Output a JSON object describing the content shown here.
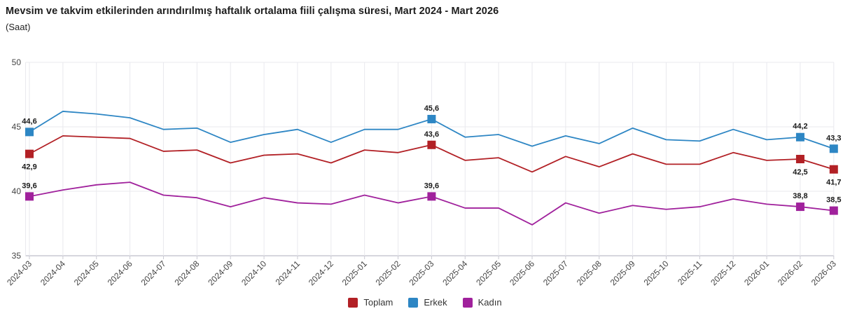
{
  "header": {
    "title": "Mevsim ve takvim etkilerinden arındırılmış haftalık ortalama fiili çalışma süresi, Mart 2024 - Mart 2026",
    "subtitle": "(Saat)"
  },
  "chart_data": {
    "type": "line",
    "title": "Mevsim ve takvim etkilerinden arındırılmış haftalık ortalama fiili çalışma süresi, Mart 2024 - Mart 2026",
    "subtitle": "(Saat)",
    "x": [
      "2024-03",
      "2024-04",
      "2024-05",
      "2024-06",
      "2024-07",
      "2024-08",
      "2024-09",
      "2024-10",
      "2024-11",
      "2024-12",
      "2025-01",
      "2025-02",
      "2025-03",
      "2025-04",
      "2025-05",
      "2025-06",
      "2025-07",
      "2025-08",
      "2025-09",
      "2025-10",
      "2025-11",
      "2025-12",
      "2026-01",
      "2026-02",
      "2026-03"
    ],
    "series": [
      {
        "name": "Toplam",
        "color": "#b22025",
        "values": [
          42.9,
          44.3,
          44.2,
          44.1,
          43.1,
          43.2,
          42.2,
          42.8,
          42.9,
          42.2,
          43.2,
          43.0,
          43.6,
          42.4,
          42.6,
          41.5,
          42.7,
          41.9,
          42.9,
          42.1,
          42.1,
          43.0,
          42.4,
          42.5,
          41.7
        ]
      },
      {
        "name": "Erkek",
        "color": "#2d86c4",
        "values": [
          44.6,
          46.2,
          46.0,
          45.7,
          44.8,
          44.9,
          43.8,
          44.4,
          44.8,
          43.8,
          44.8,
          44.8,
          45.6,
          44.2,
          44.4,
          43.5,
          44.3,
          43.7,
          44.9,
          44.0,
          43.9,
          44.8,
          44.0,
          44.2,
          43.3
        ]
      },
      {
        "name": "Kadın",
        "color": "#a0219c",
        "values": [
          39.6,
          40.1,
          40.5,
          40.7,
          39.7,
          39.5,
          38.8,
          39.5,
          39.1,
          39.0,
          39.7,
          39.1,
          39.6,
          38.7,
          38.7,
          37.4,
          39.1,
          38.3,
          38.9,
          38.6,
          38.8,
          39.4,
          39.0,
          38.8,
          38.5
        ]
      }
    ],
    "data_labels": {
      "indices": [
        0,
        12,
        23,
        24
      ],
      "positions": {
        "Toplam": [
          "below",
          "above",
          "below",
          "below"
        ],
        "Erkek": [
          "above",
          "above",
          "above",
          "above"
        ],
        "Kadın": [
          "above",
          "above",
          "above",
          "above"
        ]
      },
      "decimal_separator": ","
    },
    "ylim": [
      35,
      50
    ],
    "yticks": [
      35,
      40,
      45,
      50
    ],
    "grid": true,
    "legend_position": "bottom"
  }
}
